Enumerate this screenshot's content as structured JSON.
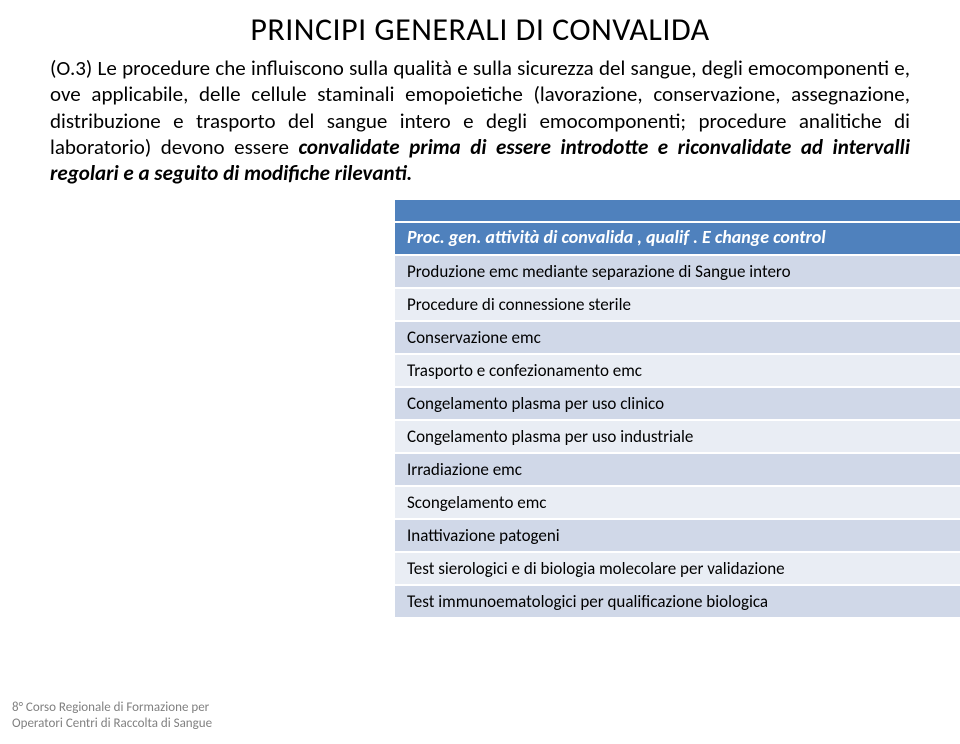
{
  "title": "PRINCIPI GENERALI DI CONVALIDA",
  "paragraph_plain_prefix": "(O.3) Le procedure che influiscono sulla qualità e sulla sicurezza del sangue, degli emocomponenti e, ove applicabile, delle cellule staminali emopoietiche (lavorazione, conservazione, assegnazione, distribuzione e trasporto del sangue intero e degli emocomponenti; procedure analitiche di laboratorio) devono essere ",
  "paragraph_emphasis": "convalidate prima di essere introdotte e riconvalidate ad intervalli regolari e a seguito di modifiche rilevanti.",
  "table": {
    "header": "Proc. gen. attività di convalida , qualif . E change control",
    "rows": [
      "Produzione emc mediante separazione di Sangue intero",
      "Procedure di connessione sterile",
      "Conservazione emc",
      "Trasporto e confezionamento emc",
      "Congelamento plasma per uso clinico",
      "Congelamento plasma per uso industriale",
      "Irradiazione emc",
      "Scongelamento emc",
      "Inattivazione  patogeni",
      "Test sierologici e di biologia molecolare per validazione",
      "Test immunoematologici per qualificazione biologica"
    ],
    "colors": {
      "header_bg": "#4f81bd",
      "header_fg": "#ffffff",
      "row_bg": "#d0d8e8",
      "row_alt_bg": "#e9edf4",
      "row_fg": "#000000"
    }
  },
  "footer_line1": "8° Corso Regionale di Formazione per",
  "footer_line2": "Operatori Centri di Raccolta di Sangue"
}
